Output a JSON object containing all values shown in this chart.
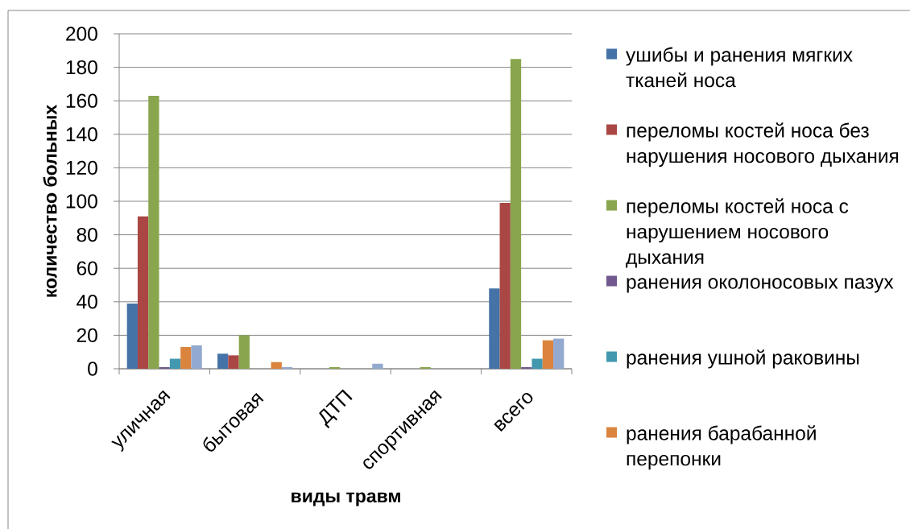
{
  "chart_data": {
    "type": "bar",
    "xlabel": "виды травм",
    "ylabel": "количество больных",
    "categories": [
      "уличная",
      "бытовая",
      "ДТП",
      "спортивная",
      "всего"
    ],
    "series": [
      {
        "name": "ушибы и ранения мягких тканей носа",
        "color": "#4572A7",
        "values": [
          39,
          9,
          0,
          0,
          48
        ]
      },
      {
        "name": "переломы костей носа без нарушения носового дыхания",
        "color": "#AA4643",
        "values": [
          91,
          8,
          0,
          0,
          99
        ]
      },
      {
        "name": "переломы костей носа с нарушением носового дыхания",
        "color": "#89A54E",
        "values": [
          163,
          20,
          1,
          1,
          185
        ]
      },
      {
        "name": "ранения околоносовых пазух",
        "color": "#71588F",
        "values": [
          1,
          0,
          0,
          0,
          1
        ]
      },
      {
        "name": "ранения ушной раковины",
        "color": "#4198AF",
        "values": [
          6,
          0,
          0,
          0,
          6
        ]
      },
      {
        "name": "ранения барабанной перепонки",
        "color": "#DB843D",
        "values": [
          13,
          4,
          0,
          0,
          17
        ]
      },
      {
        "color": "#93A9CF",
        "values": [
          14,
          1,
          3,
          0,
          18
        ]
      }
    ],
    "ylim": [
      0,
      200
    ],
    "yticks": [
      0,
      20,
      40,
      60,
      80,
      100,
      120,
      140,
      160,
      180,
      200
    ],
    "grid": "y",
    "legend": "right"
  }
}
